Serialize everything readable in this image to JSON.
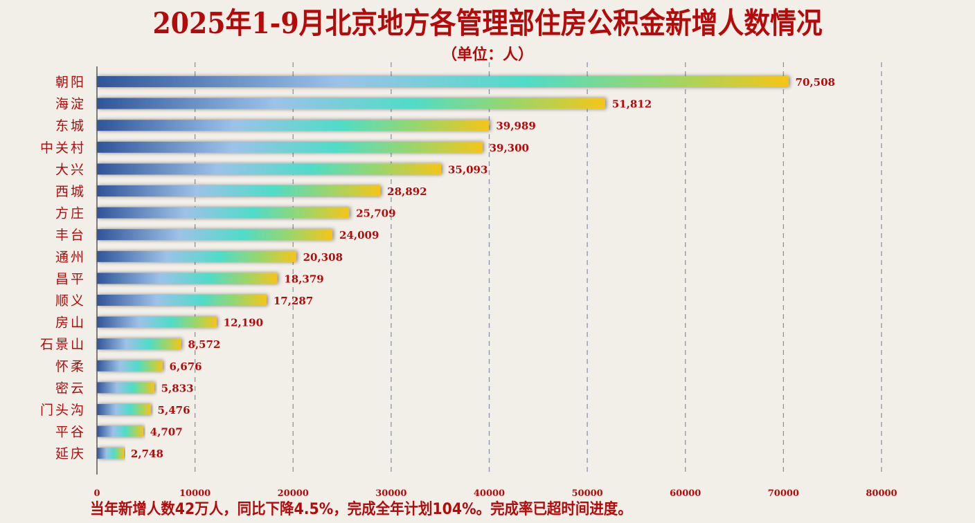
{
  "title": "2025年1-9月北京地方各管理部住房公积金新增人数情况",
  "subtitle": "（单位：人）",
  "footer": "当年新增人数42万人，同比下降4.5%，完成全年计划104%。完成率已超时间进度。",
  "colors": {
    "text": "#b40a0a",
    "grid": "#8a94a8",
    "axis": "#555555",
    "bar_gradient": [
      "#2f559a",
      "#9cc2e8",
      "#4fdcc8",
      "#9ad66a",
      "#f5c518"
    ]
  },
  "chart_data": {
    "type": "bar",
    "orientation": "horizontal",
    "title": "2025年1-9月北京地方各管理部住房公积金新增人数情况",
    "subtitle": "（单位：人）",
    "xlabel": "",
    "ylabel": "",
    "xlim": [
      0,
      80000
    ],
    "x_ticks": [
      "0",
      "10000",
      "20000",
      "30000",
      "40000",
      "50000",
      "60000",
      "70000",
      "80000"
    ],
    "x_tick_values": [
      0,
      10000,
      20000,
      30000,
      40000,
      50000,
      60000,
      70000,
      80000
    ],
    "grid": "vertical dashed",
    "categories": [
      "朝阳",
      "海淀",
      "东城",
      "中关村",
      "大兴",
      "西城",
      "方庄",
      "丰台",
      "通州",
      "昌平",
      "顺义",
      "房山",
      "石景山",
      "怀柔",
      "密云",
      "门头沟",
      "平谷",
      "延庆"
    ],
    "values": [
      70508,
      51812,
      39989,
      39300,
      35093,
      28892,
      25709,
      24009,
      20308,
      18379,
      17287,
      12190,
      8572,
      6676,
      5833,
      5476,
      4707,
      2748
    ],
    "value_labels": [
      "70,508",
      "51,812",
      "39,989",
      "39,300",
      "35,093",
      "28,892",
      "25,709",
      "24,009",
      "20,308",
      "18,379",
      "17,287",
      "12,190",
      "8,572",
      "6,676",
      "5,833",
      "5,476",
      "4,707",
      "2,748"
    ]
  }
}
